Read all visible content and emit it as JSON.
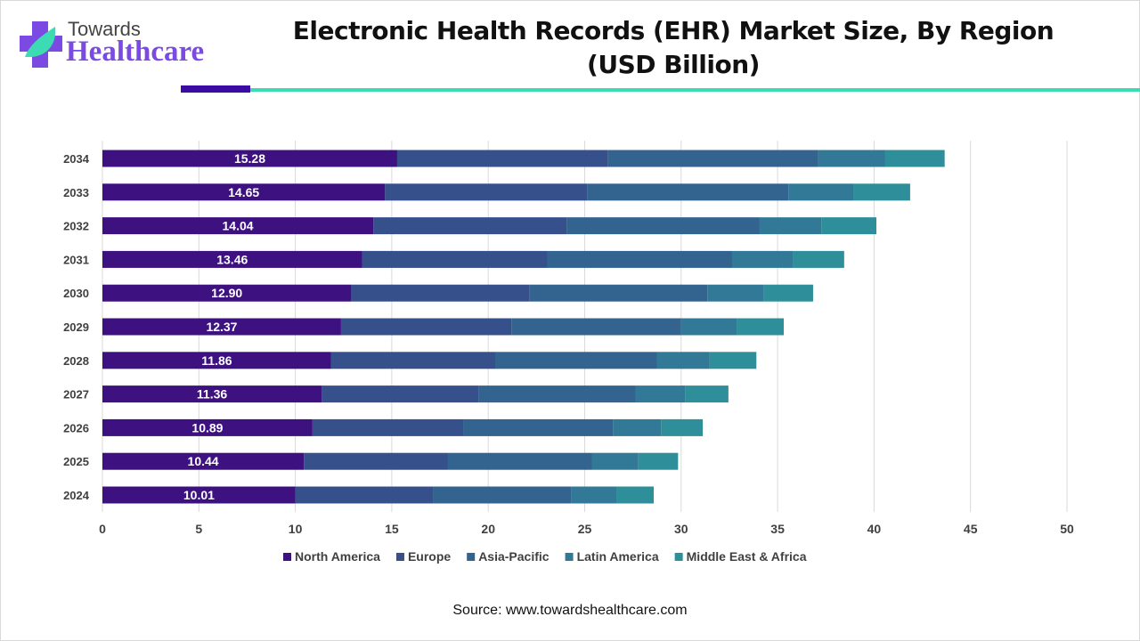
{
  "brand": {
    "line1": "Towards",
    "line2": "Healthcare"
  },
  "header": {
    "title_line1": "Electronic Health Records (EHR) Market Size, By Region",
    "title_line2": "(USD Billion)"
  },
  "source": "Source: www.towardshealthcare.com",
  "chart_data": {
    "type": "bar",
    "orientation": "horizontal",
    "stacked": true,
    "title": "Electronic Health Records (EHR) Market Size, By Region (USD Billion)",
    "categories": [
      "2024",
      "2025",
      "2026",
      "2027",
      "2028",
      "2029",
      "2030",
      "2031",
      "2032",
      "2033",
      "2034"
    ],
    "xlim": [
      0,
      50
    ],
    "x_ticks": [
      0,
      5,
      10,
      15,
      20,
      25,
      30,
      35,
      40,
      45,
      50
    ],
    "grid": "vertical",
    "legend": "bottom",
    "series": [
      {
        "name": "North America",
        "color": "#3d1180",
        "values": [
          10.01,
          10.44,
          10.89,
          11.36,
          11.86,
          12.37,
          12.9,
          13.46,
          14.04,
          14.65,
          15.28
        ],
        "data_labels": [
          "10.01",
          "10.44",
          "10.89",
          "11.36",
          "11.86",
          "12.37",
          "12.90",
          "13.46",
          "14.04",
          "14.65",
          "15.28"
        ]
      },
      {
        "name": "Europe",
        "color": "#36508c",
        "values": [
          7.12,
          7.45,
          7.81,
          8.14,
          8.5,
          8.83,
          9.25,
          9.6,
          10.03,
          10.5,
          10.93
        ]
      },
      {
        "name": "Asia-Pacific",
        "color": "#33638f",
        "values": [
          7.19,
          7.48,
          7.77,
          8.13,
          8.4,
          8.8,
          9.21,
          9.58,
          10.0,
          10.41,
          10.89
        ]
      },
      {
        "name": "Latin America",
        "color": "#317996",
        "values": [
          2.32,
          2.41,
          2.49,
          2.58,
          2.72,
          2.89,
          2.9,
          3.16,
          3.2,
          3.36,
          3.48
        ]
      },
      {
        "name": "Middle East & Africa",
        "color": "#2e8e99",
        "values": [
          1.94,
          2.06,
          2.16,
          2.24,
          2.42,
          2.43,
          2.58,
          2.65,
          2.85,
          2.95,
          3.08
        ]
      }
    ]
  }
}
